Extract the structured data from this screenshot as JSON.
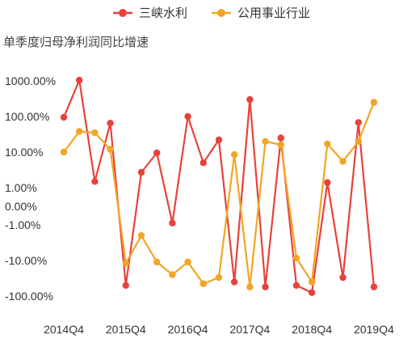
{
  "chart_data": {
    "type": "line",
    "title": "",
    "subtitle": "单季度归母净利润同比增速",
    "xlabel": "",
    "ylabel": "",
    "y_scale": "symlog",
    "y_ticks": [
      "1000.00%",
      "100.00%",
      "10.00%",
      "1.00%",
      "0.00%",
      "-1.00%",
      "-10.00%",
      "-100.00%"
    ],
    "x_tick_labels": [
      "2014Q4",
      "2015Q4",
      "2016Q4",
      "2017Q4",
      "2018Q4",
      "2019Q4"
    ],
    "x": [
      "2014Q4",
      "2015Q1",
      "2015Q2",
      "2015Q3",
      "2015Q4",
      "2016Q1",
      "2016Q2",
      "2016Q3",
      "2016Q4",
      "2017Q1",
      "2017Q2",
      "2017Q3",
      "2017Q4",
      "2018Q1",
      "2018Q2",
      "2018Q3",
      "2018Q4",
      "2019Q1",
      "2019Q2",
      "2019Q3",
      "2019Q4"
    ],
    "legend_position": "top",
    "grid": false,
    "series": [
      {
        "name": "三峡水利",
        "color": "#e8423b",
        "values": [
          95,
          1050,
          1.5,
          65,
          -50,
          2.7,
          9.5,
          -0.9,
          100,
          5,
          22,
          -40,
          300,
          -55,
          25,
          -50,
          -80,
          1.4,
          -30,
          68,
          -55
        ]
      },
      {
        "name": "公用事业行业",
        "color": "#f2a524",
        "values": [
          10,
          38,
          35,
          12,
          -12,
          -2,
          -11,
          -25,
          -11,
          -45,
          -30,
          8.5,
          -55,
          20,
          16,
          -8.5,
          -40,
          17,
          5.5,
          20,
          250
        ]
      }
    ]
  }
}
